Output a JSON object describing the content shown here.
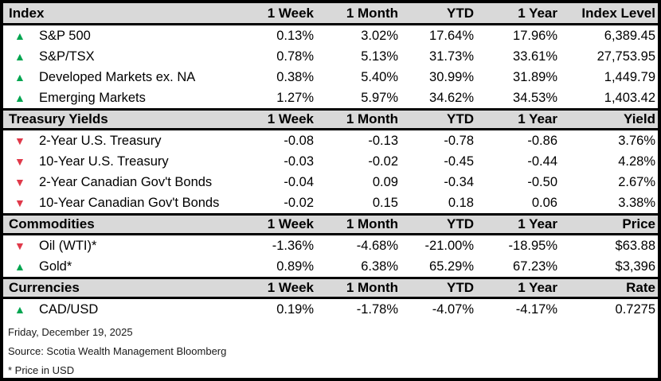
{
  "colors": {
    "up_green": "#00A550",
    "down_red": "#E0394A",
    "section_header_bg": "#D9D9D9",
    "border_black": "#000000"
  },
  "table": {
    "sections": [
      {
        "title": "Index",
        "columns": [
          "1 Week",
          "1 Month",
          "YTD",
          "1 Year",
          "Index Level"
        ],
        "rows": [
          {
            "direction": "up",
            "label": "S&P 500",
            "values": [
              "0.13%",
              "3.02%",
              "17.64%",
              "17.96%",
              "6,389.45"
            ]
          },
          {
            "direction": "up",
            "label": "S&P/TSX",
            "values": [
              "0.78%",
              "5.13%",
              "31.73%",
              "33.61%",
              "27,753.95"
            ]
          },
          {
            "direction": "up",
            "label": "Developed Markets ex. NA",
            "values": [
              "0.38%",
              "5.40%",
              "30.99%",
              "31.89%",
              "1,449.79"
            ]
          },
          {
            "direction": "up",
            "label": "Emerging Markets",
            "values": [
              "1.27%",
              "5.97%",
              "34.62%",
              "34.53%",
              "1,403.42"
            ]
          }
        ]
      },
      {
        "title": "Treasury Yields",
        "columns": [
          "1 Week",
          "1 Month",
          "YTD",
          "1 Year",
          "Yield"
        ],
        "rows": [
          {
            "direction": "down",
            "label": "2-Year U.S. Treasury",
            "values": [
              "-0.08",
              "-0.13",
              "-0.78",
              "-0.86",
              "3.76%"
            ]
          },
          {
            "direction": "down",
            "label": "10-Year U.S. Treasury",
            "values": [
              "-0.03",
              "-0.02",
              "-0.45",
              "-0.44",
              "4.28%"
            ]
          },
          {
            "direction": "down",
            "label": "2-Year Canadian Gov't Bonds",
            "values": [
              "-0.04",
              "0.09",
              "-0.34",
              "-0.50",
              "2.67%"
            ]
          },
          {
            "direction": "down",
            "label": "10-Year Canadian Gov't Bonds",
            "values": [
              "-0.02",
              "0.15",
              "0.18",
              "0.06",
              "3.38%"
            ]
          }
        ]
      },
      {
        "title": "Commodities",
        "columns": [
          "1 Week",
          "1 Month",
          "YTD",
          "1 Year",
          "Price"
        ],
        "rows": [
          {
            "direction": "down",
            "label": "Oil (WTI)*",
            "values": [
              "-1.36%",
              "-4.68%",
              "-21.00%",
              "-18.95%",
              "$63.88"
            ]
          },
          {
            "direction": "up",
            "label": "Gold*",
            "values": [
              "0.89%",
              "6.38%",
              "65.29%",
              "67.23%",
              "$3,396"
            ]
          }
        ]
      },
      {
        "title": "Currencies",
        "columns": [
          "1 Week",
          "1 Month",
          "YTD",
          "1 Year",
          "Rate"
        ],
        "rows": [
          {
            "direction": "up",
            "label": "CAD/USD",
            "values": [
              "0.19%",
              "-1.78%",
              "-4.07%",
              "-4.17%",
              "0.7275"
            ]
          }
        ]
      }
    ]
  },
  "footer": {
    "lines": [
      "Friday, December 19, 2025",
      "Source: Scotia Wealth Management Bloomberg",
      "* Price in USD"
    ]
  }
}
